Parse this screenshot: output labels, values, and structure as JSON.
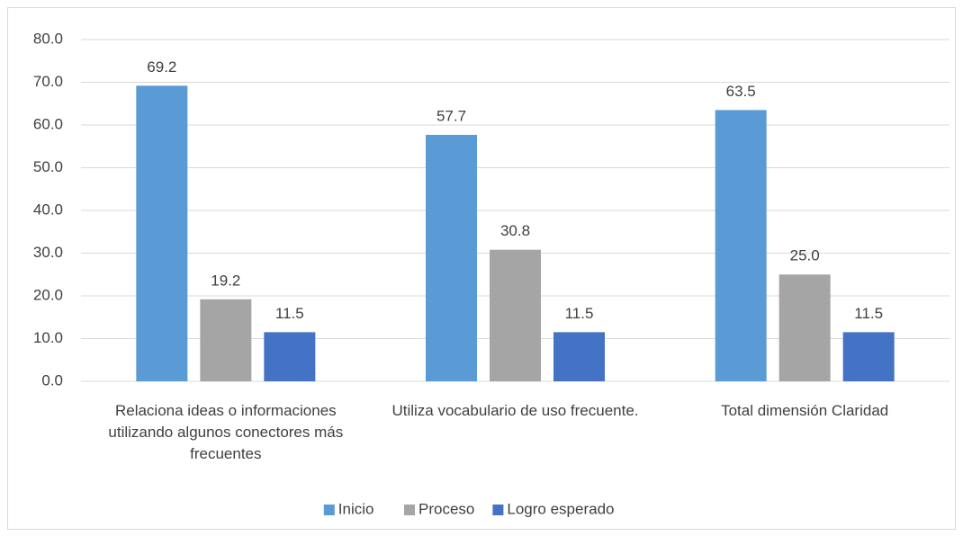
{
  "chart_data": {
    "type": "bar",
    "categories": [
      "Relaciona ideas o informaciones utilizando algunos conectores más frecuentes",
      "Utiliza vocabulario de uso frecuente.",
      "Total dimensión Claridad"
    ],
    "series": [
      {
        "name": "Inicio",
        "color": "#5b9bd5",
        "values": [
          69.2,
          57.7,
          63.5
        ],
        "value_labels": [
          "69.2",
          "57.7",
          "63.5"
        ]
      },
      {
        "name": "Proceso",
        "color": "#a5a5a5",
        "values": [
          19.2,
          30.8,
          25.0
        ],
        "value_labels": [
          "19.2",
          "30.8",
          "25.0"
        ]
      },
      {
        "name": "Logro esperado",
        "color": "#4472c4",
        "values": [
          11.5,
          11.5,
          11.5
        ],
        "value_labels": [
          "11.5",
          "11.5",
          "11.5"
        ]
      }
    ],
    "ylim": [
      0,
      80
    ],
    "yticks": [
      {
        "value": 0,
        "label": "0.0"
      },
      {
        "value": 10,
        "label": "10.0"
      },
      {
        "value": 20,
        "label": "20.0"
      },
      {
        "value": 30,
        "label": "30.0"
      },
      {
        "value": 40,
        "label": "40.0"
      },
      {
        "value": 50,
        "label": "50.0"
      },
      {
        "value": 60,
        "label": "60.0"
      },
      {
        "value": 70,
        "label": "70.0"
      },
      {
        "value": 80,
        "label": "80.0"
      }
    ],
    "grid": true,
    "legend": "bottom"
  }
}
